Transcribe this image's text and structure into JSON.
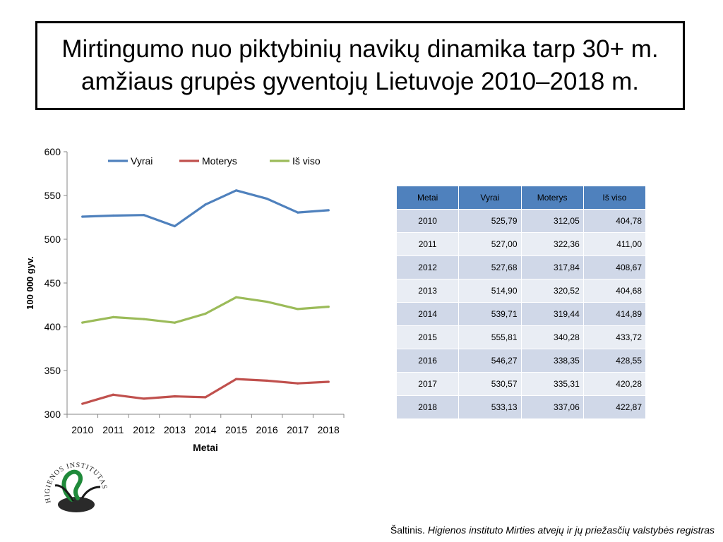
{
  "title": "Mirtingumo nuo piktybinių navikų dinamika tarp 30+ m. amžiaus grupės gyventojų Lietuvoje 2010–2018 m.",
  "chart_data": {
    "type": "line",
    "x": [
      "2010",
      "2011",
      "2012",
      "2013",
      "2014",
      "2015",
      "2016",
      "2017",
      "2018"
    ],
    "series": [
      {
        "name": "Vyrai",
        "color": "#4f81bd",
        "values": [
          525.79,
          527.0,
          527.68,
          514.9,
          539.71,
          555.81,
          546.27,
          530.57,
          533.13
        ]
      },
      {
        "name": "Moterys",
        "color": "#c0504d",
        "values": [
          312.05,
          322.36,
          317.84,
          320.52,
          319.44,
          340.28,
          338.35,
          335.31,
          337.06
        ]
      },
      {
        "name": "Iš viso",
        "color": "#9bbb59",
        "values": [
          404.78,
          411.0,
          408.67,
          404.68,
          414.89,
          433.72,
          428.55,
          420.28,
          422.87
        ]
      }
    ],
    "xlabel": "Metai",
    "ylabel": "100 000 gyv.",
    "ylim": [
      300,
      600
    ],
    "yticks": [
      300,
      350,
      400,
      450,
      500,
      550,
      600
    ],
    "grid": false,
    "legend": "top"
  },
  "table": {
    "headers": [
      "Metai",
      "Vyrai",
      "Moterys",
      "Iš viso"
    ],
    "rows": [
      [
        "2010",
        "525,79",
        "312,05",
        "404,78"
      ],
      [
        "2011",
        "527,00",
        "322,36",
        "411,00"
      ],
      [
        "2012",
        "527,68",
        "317,84",
        "408,67"
      ],
      [
        "2013",
        "514,90",
        "320,52",
        "404,68"
      ],
      [
        "2014",
        "539,71",
        "319,44",
        "414,89"
      ],
      [
        "2015",
        "555,81",
        "340,28",
        "433,72"
      ],
      [
        "2016",
        "546,27",
        "338,35",
        "428,55"
      ],
      [
        "2017",
        "530,57",
        "335,31",
        "420,28"
      ],
      [
        "2018",
        "533,13",
        "337,06",
        "422,87"
      ]
    ]
  },
  "logo": {
    "text": "HIGIENOS INSTITUTAS"
  },
  "source": {
    "prefix": "Šaltinis. ",
    "text": "Higienos instituto  Mirties atvejų ir jų priežasčių valstybės registras"
  }
}
